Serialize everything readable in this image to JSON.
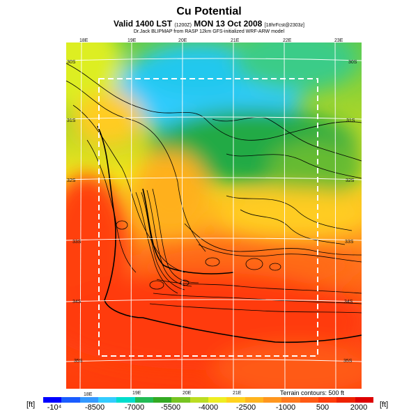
{
  "header": {
    "title": "Cu Potential",
    "subtitle_main": "Valid 1400 LST",
    "subtitle_small1": "(1200Z)",
    "subtitle_date": "MON 13 Oct 2008",
    "subtitle_small2": "[18hrFcst@2303z]",
    "credit": "Dr.Jack BLIPMAP from RASP 12km GFS-initialized WRF-ARW model"
  },
  "map": {
    "lon_labels": [
      "18E",
      "19E",
      "20E",
      "21E",
      "22E",
      "23E"
    ],
    "lat_labels_left": [
      "30S",
      "31S",
      "32S",
      "33S",
      "34S",
      "35S"
    ],
    "lat_labels_right": [
      "30S",
      "31S",
      "32S",
      "33S",
      "34S",
      "35S"
    ],
    "terrain_note": "Terrain contours: 500 ft"
  },
  "colorbar": {
    "unit_left": "[ft]",
    "unit_right": "[ft]",
    "ticks": [
      "-10⁴",
      "-8500",
      "-7000",
      "-5500",
      "-4000",
      "-2500",
      "-1000",
      "500",
      "2000"
    ],
    "colors": [
      "#0000ff",
      "#1a5cff",
      "#3399ff",
      "#33ccff",
      "#00ddcc",
      "#22bb55",
      "#33aa22",
      "#77c422",
      "#bbdd22",
      "#eeee22",
      "#ffd21e",
      "#ffb41e",
      "#ff961e",
      "#ff781e",
      "#ff5a14",
      "#ff3c0a",
      "#ee2200",
      "#dd0000"
    ]
  }
}
